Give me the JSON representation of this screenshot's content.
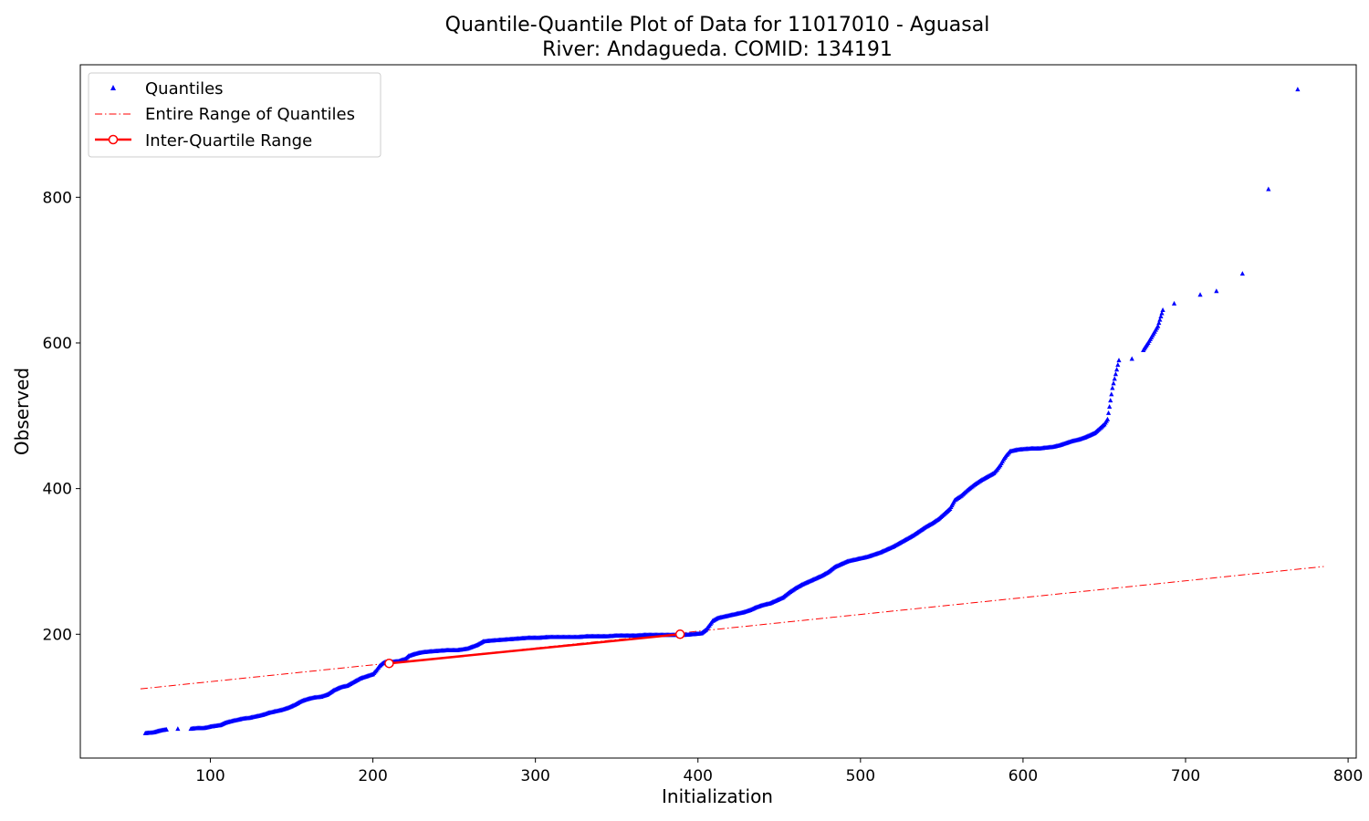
{
  "chart_data": {
    "type": "scatter",
    "title_line1": "Quantile-Quantile Plot of Data for 11017010 - Aguasal",
    "title_line2": "River: Andagueda. COMID: 134191",
    "xlabel": "Initialization",
    "ylabel": "Observed",
    "xlim": [
      20,
      805
    ],
    "ylim": [
      30,
      982
    ],
    "xticks": [
      100,
      200,
      300,
      400,
      500,
      600,
      700,
      800
    ],
    "yticks": [
      200,
      400,
      600,
      800
    ],
    "grid": false,
    "legend_position": "top-left",
    "legend": [
      {
        "label": "Quantiles",
        "style": "blue-triangle-markers"
      },
      {
        "label": "Entire Range of Quantiles",
        "style": "red-dashdot-line"
      },
      {
        "label": "Inter-Quartile Range",
        "style": "red-solid-line-with-circle-markers"
      }
    ],
    "colors": {
      "quantiles": "#0000ff",
      "reference": "#ff0000"
    },
    "series": [
      {
        "name": "Quantiles",
        "points": [
          [
            60,
            64
          ],
          [
            65,
            65
          ],
          [
            68,
            67
          ],
          [
            70,
            68
          ],
          [
            73,
            69
          ],
          [
            80,
            70
          ],
          [
            88,
            70
          ],
          [
            92,
            71
          ],
          [
            96,
            71
          ],
          [
            100,
            73
          ],
          [
            103,
            74
          ],
          [
            106,
            75
          ],
          [
            109,
            78
          ],
          [
            112,
            80
          ],
          [
            116,
            82
          ],
          [
            120,
            84
          ],
          [
            124,
            85
          ],
          [
            128,
            87
          ],
          [
            132,
            89
          ],
          [
            136,
            92
          ],
          [
            140,
            94
          ],
          [
            144,
            96
          ],
          [
            148,
            99
          ],
          [
            152,
            103
          ],
          [
            156,
            108
          ],
          [
            160,
            111
          ],
          [
            164,
            113
          ],
          [
            168,
            114
          ],
          [
            172,
            117
          ],
          [
            176,
            123
          ],
          [
            180,
            127
          ],
          [
            184,
            129
          ],
          [
            188,
            134
          ],
          [
            192,
            139
          ],
          [
            196,
            142
          ],
          [
            200,
            145
          ],
          [
            202,
            150
          ],
          [
            204,
            156
          ],
          [
            206,
            160
          ],
          [
            208,
            162
          ],
          [
            212,
            162
          ],
          [
            216,
            163
          ],
          [
            220,
            166
          ],
          [
            222,
            170
          ],
          [
            226,
            173
          ],
          [
            230,
            175
          ],
          [
            234,
            176
          ],
          [
            240,
            177
          ],
          [
            246,
            178
          ],
          [
            252,
            178
          ],
          [
            258,
            180
          ],
          [
            264,
            185
          ],
          [
            268,
            190
          ],
          [
            272,
            191
          ],
          [
            278,
            192
          ],
          [
            284,
            193
          ],
          [
            290,
            194
          ],
          [
            296,
            195
          ],
          [
            302,
            195
          ],
          [
            308,
            196
          ],
          [
            314,
            196
          ],
          [
            320,
            196
          ],
          [
            326,
            196
          ],
          [
            332,
            197
          ],
          [
            338,
            197
          ],
          [
            344,
            197
          ],
          [
            350,
            198
          ],
          [
            356,
            198
          ],
          [
            362,
            198
          ],
          [
            368,
            199
          ],
          [
            374,
            199
          ],
          [
            380,
            199
          ],
          [
            386,
            199
          ],
          [
            392,
            199
          ],
          [
            398,
            200
          ],
          [
            402,
            201
          ],
          [
            405,
            206
          ],
          [
            407,
            212
          ],
          [
            409,
            218
          ],
          [
            412,
            222
          ],
          [
            416,
            224
          ],
          [
            420,
            226
          ],
          [
            424,
            228
          ],
          [
            428,
            230
          ],
          [
            432,
            233
          ],
          [
            436,
            237
          ],
          [
            440,
            240
          ],
          [
            444,
            242
          ],
          [
            448,
            246
          ],
          [
            452,
            250
          ],
          [
            456,
            257
          ],
          [
            460,
            263
          ],
          [
            464,
            268
          ],
          [
            468,
            272
          ],
          [
            472,
            276
          ],
          [
            476,
            280
          ],
          [
            480,
            285
          ],
          [
            484,
            292
          ],
          [
            488,
            296
          ],
          [
            492,
            300
          ],
          [
            496,
            302
          ],
          [
            500,
            304
          ],
          [
            504,
            306
          ],
          [
            508,
            309
          ],
          [
            512,
            312
          ],
          [
            516,
            316
          ],
          [
            520,
            320
          ],
          [
            524,
            325
          ],
          [
            528,
            330
          ],
          [
            532,
            335
          ],
          [
            536,
            341
          ],
          [
            540,
            347
          ],
          [
            544,
            352
          ],
          [
            548,
            358
          ],
          [
            552,
            366
          ],
          [
            555,
            372
          ],
          [
            558,
            384
          ],
          [
            562,
            390
          ],
          [
            566,
            398
          ],
          [
            570,
            405
          ],
          [
            574,
            411
          ],
          [
            578,
            416
          ],
          [
            582,
            421
          ],
          [
            584,
            426
          ],
          [
            586,
            432
          ],
          [
            588,
            440
          ],
          [
            590,
            446
          ],
          [
            592,
            451
          ],
          [
            594,
            452
          ],
          [
            596,
            453
          ],
          [
            600,
            454
          ],
          [
            606,
            455
          ],
          [
            610,
            455
          ],
          [
            614,
            456
          ],
          [
            618,
            457
          ],
          [
            622,
            459
          ],
          [
            626,
            462
          ],
          [
            630,
            465
          ],
          [
            634,
            467
          ],
          [
            638,
            470
          ],
          [
            641,
            473
          ],
          [
            644,
            476
          ],
          [
            646,
            480
          ],
          [
            648,
            484
          ],
          [
            650,
            488
          ],
          [
            652,
            495
          ],
          [
            655,
            538
          ],
          [
            659,
            576
          ],
          [
            667,
            578
          ],
          [
            674,
            590
          ],
          [
            677,
            600
          ],
          [
            683,
            623
          ],
          [
            686,
            645
          ],
          [
            693,
            654
          ],
          [
            709,
            666
          ],
          [
            719,
            671
          ],
          [
            735,
            695
          ],
          [
            751,
            811
          ],
          [
            769,
            948
          ]
        ]
      },
      {
        "name": "Entire Range of Quantiles",
        "x": [
          57,
          785
        ],
        "y": [
          125,
          293
        ]
      },
      {
        "name": "Inter-Quartile Range",
        "x": [
          210,
          389
        ],
        "y": [
          160,
          200
        ]
      }
    ]
  }
}
